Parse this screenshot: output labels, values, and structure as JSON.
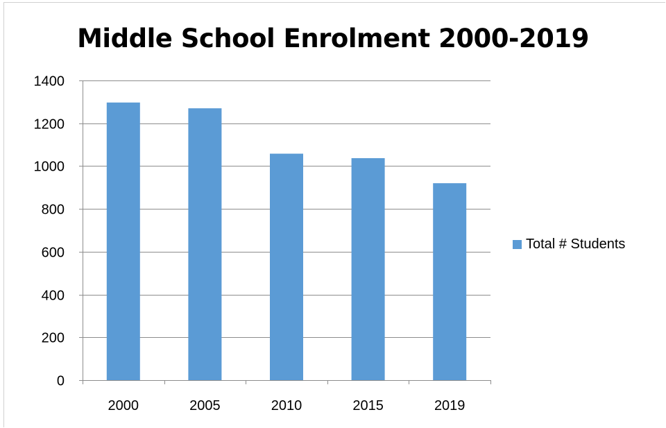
{
  "chart_data": {
    "type": "bar",
    "title": "Middle School Enrolment 2000-2019",
    "categories": [
      "2000",
      "2005",
      "2010",
      "2015",
      "2019"
    ],
    "series": [
      {
        "name": "Total # Students",
        "values": [
          1297,
          1270,
          1058,
          1037,
          920
        ],
        "color": "#5b9bd5"
      }
    ],
    "ylim": [
      0,
      1400
    ],
    "yticks": [
      0,
      200,
      400,
      600,
      800,
      1000,
      1200,
      1400
    ],
    "grid": true,
    "legend_position": "right"
  }
}
